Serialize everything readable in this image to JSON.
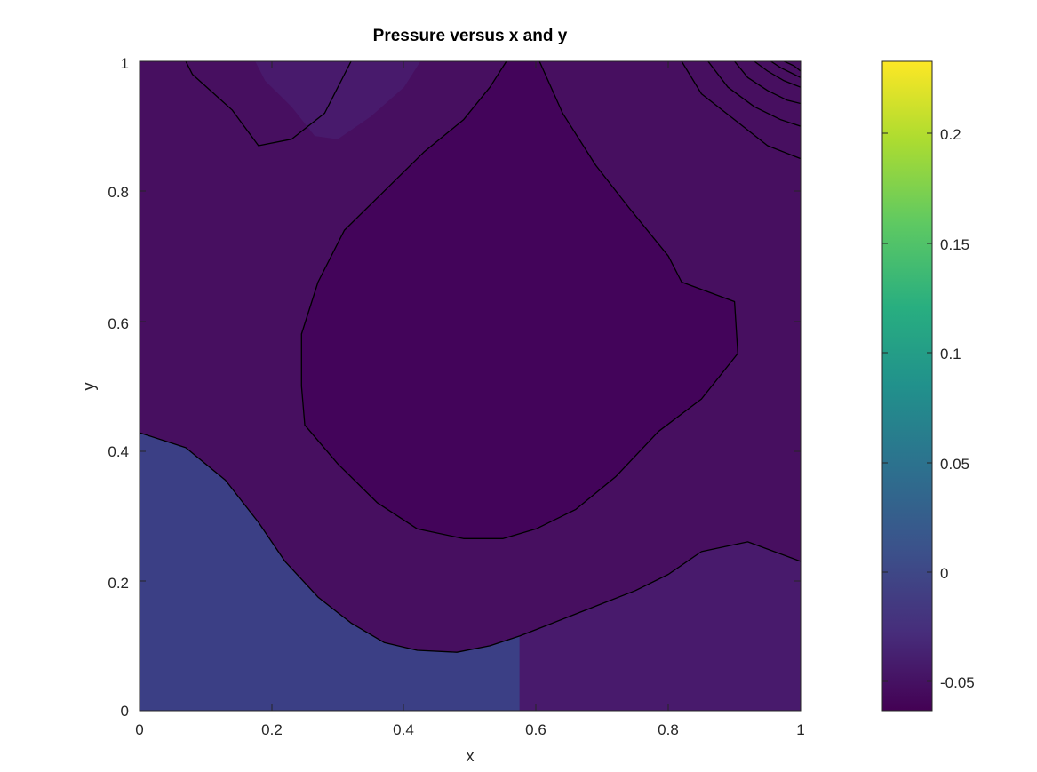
{
  "chart_data": {
    "type": "contourf",
    "title": "Pressure versus x and y",
    "xlabel": "x",
    "ylabel": "y",
    "xlim": [
      0,
      1
    ],
    "ylim": [
      0,
      1
    ],
    "xticks": [
      "0",
      "0.2",
      "0.4",
      "0.6",
      "0.8",
      "1"
    ],
    "yticks": [
      "0",
      "0.2",
      "0.4",
      "0.6",
      "0.8",
      "1"
    ],
    "grid": false,
    "colormap": "viridis",
    "colorbar": {
      "range": [
        -0.063,
        0.233
      ],
      "ticks": [
        "-0.05",
        "0",
        "0.05",
        "0.1",
        "0.15",
        "0.2"
      ]
    },
    "regions": [
      {
        "level": -0.047,
        "color": "#470f60",
        "points": [
          [
            0,
            0
          ],
          [
            1,
            0
          ],
          [
            1,
            1
          ],
          [
            0,
            1
          ]
        ]
      },
      {
        "level": -0.019,
        "color": "#3b3f85",
        "points": [
          [
            0,
            0.428
          ],
          [
            0.07,
            0.405
          ],
          [
            0.13,
            0.355
          ],
          [
            0.18,
            0.29
          ],
          [
            0.22,
            0.23
          ],
          [
            0.27,
            0.175
          ],
          [
            0.32,
            0.135
          ],
          [
            0.37,
            0.105
          ],
          [
            0.42,
            0.093
          ],
          [
            0.48,
            0.09
          ],
          [
            0.53,
            0.1
          ],
          [
            0.575,
            0.115
          ],
          [
            0.575,
            0
          ],
          [
            0,
            0
          ]
        ]
      },
      {
        "level": -0.064,
        "color": "#43045a",
        "points": [
          [
            0.555,
            1
          ],
          [
            0.605,
            1
          ],
          [
            0.64,
            0.92
          ],
          [
            0.69,
            0.84
          ],
          [
            0.74,
            0.775
          ],
          [
            0.8,
            0.7
          ],
          [
            0.82,
            0.66
          ],
          [
            0.9,
            0.63
          ],
          [
            0.905,
            0.55
          ],
          [
            0.85,
            0.48
          ],
          [
            0.785,
            0.43
          ],
          [
            0.72,
            0.36
          ],
          [
            0.66,
            0.31
          ],
          [
            0.6,
            0.28
          ],
          [
            0.55,
            0.265
          ],
          [
            0.49,
            0.265
          ],
          [
            0.42,
            0.28
          ],
          [
            0.36,
            0.32
          ],
          [
            0.3,
            0.38
          ],
          [
            0.25,
            0.44
          ],
          [
            0.245,
            0.5
          ],
          [
            0.245,
            0.58
          ],
          [
            0.27,
            0.66
          ],
          [
            0.31,
            0.74
          ],
          [
            0.37,
            0.8
          ],
          [
            0.43,
            0.86
          ],
          [
            0.49,
            0.91
          ],
          [
            0.53,
            0.96
          ],
          [
            0.555,
            1
          ]
        ]
      },
      {
        "level": -0.034,
        "color": "#481a6c",
        "points": [
          [
            0.575,
            0
          ],
          [
            0.575,
            0.115
          ],
          [
            0.6,
            0.125
          ],
          [
            0.65,
            0.145
          ],
          [
            0.7,
            0.165
          ],
          [
            0.75,
            0.185
          ],
          [
            0.8,
            0.21
          ],
          [
            0.85,
            0.245
          ],
          [
            0.92,
            0.26
          ],
          [
            1,
            0.23
          ],
          [
            1,
            0
          ]
        ]
      },
      {
        "level": -0.034,
        "color": "#481a6c",
        "points": [
          [
            0.175,
            1
          ],
          [
            0.19,
            0.97
          ],
          [
            0.23,
            0.93
          ],
          [
            0.265,
            0.885
          ],
          [
            0.3,
            0.88
          ],
          [
            0.35,
            0.915
          ],
          [
            0.4,
            0.96
          ],
          [
            0.425,
            1
          ]
        ]
      }
    ],
    "isolines": [
      [
        [
          0,
          0.428
        ],
        [
          0.07,
          0.405
        ],
        [
          0.13,
          0.355
        ],
        [
          0.18,
          0.29
        ],
        [
          0.22,
          0.23
        ],
        [
          0.27,
          0.175
        ],
        [
          0.32,
          0.135
        ],
        [
          0.37,
          0.105
        ],
        [
          0.42,
          0.093
        ],
        [
          0.48,
          0.09
        ],
        [
          0.53,
          0.1
        ],
        [
          0.575,
          0.115
        ],
        [
          0.6,
          0.125
        ],
        [
          0.65,
          0.145
        ],
        [
          0.7,
          0.165
        ],
        [
          0.75,
          0.185
        ],
        [
          0.8,
          0.21
        ],
        [
          0.85,
          0.245
        ],
        [
          0.92,
          0.26
        ],
        [
          1,
          0.23
        ]
      ],
      [
        [
          0.555,
          1
        ],
        [
          0.53,
          0.96
        ],
        [
          0.49,
          0.91
        ],
        [
          0.43,
          0.86
        ],
        [
          0.37,
          0.8
        ],
        [
          0.31,
          0.74
        ],
        [
          0.27,
          0.66
        ],
        [
          0.245,
          0.58
        ],
        [
          0.245,
          0.5
        ],
        [
          0.25,
          0.44
        ],
        [
          0.3,
          0.38
        ],
        [
          0.36,
          0.32
        ],
        [
          0.42,
          0.28
        ],
        [
          0.49,
          0.265
        ],
        [
          0.55,
          0.265
        ],
        [
          0.6,
          0.28
        ],
        [
          0.66,
          0.31
        ],
        [
          0.72,
          0.36
        ],
        [
          0.785,
          0.43
        ],
        [
          0.85,
          0.48
        ],
        [
          0.905,
          0.55
        ],
        [
          0.9,
          0.63
        ],
        [
          0.82,
          0.66
        ],
        [
          0.8,
          0.7
        ],
        [
          0.74,
          0.775
        ],
        [
          0.69,
          0.84
        ],
        [
          0.64,
          0.92
        ],
        [
          0.605,
          1
        ]
      ],
      [
        [
          0.07,
          1
        ],
        [
          0.08,
          0.98
        ],
        [
          0.14,
          0.925
        ],
        [
          0.18,
          0.87
        ],
        [
          0.23,
          0.88
        ],
        [
          0.28,
          0.92
        ],
        [
          0.3,
          0.96
        ],
        [
          0.32,
          1
        ]
      ],
      [
        [
          0.82,
          1
        ],
        [
          0.85,
          0.95
        ],
        [
          0.9,
          0.91
        ],
        [
          0.95,
          0.87
        ],
        [
          1,
          0.85
        ]
      ],
      [
        [
          0.86,
          1
        ],
        [
          0.89,
          0.96
        ],
        [
          0.93,
          0.93
        ],
        [
          0.97,
          0.91
        ],
        [
          1,
          0.9
        ]
      ],
      [
        [
          0.9,
          1
        ],
        [
          0.92,
          0.975
        ],
        [
          0.95,
          0.955
        ],
        [
          0.98,
          0.94
        ],
        [
          1,
          0.935
        ]
      ],
      [
        [
          0.93,
          1
        ],
        [
          0.95,
          0.985
        ],
        [
          0.975,
          0.97
        ],
        [
          1,
          0.96
        ]
      ],
      [
        [
          0.955,
          1
        ],
        [
          0.97,
          0.99
        ],
        [
          1,
          0.975
        ]
      ],
      [
        [
          0.975,
          1
        ],
        [
          0.99,
          0.993
        ],
        [
          1,
          0.985
        ]
      ]
    ]
  }
}
